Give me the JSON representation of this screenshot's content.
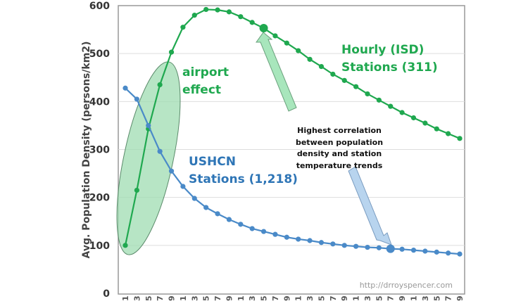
{
  "chart_data": {
    "type": "line",
    "title": "",
    "xlabel": "",
    "ylabel": "Avg. Population Density (persons/km2)",
    "ylim": [
      0,
      600
    ],
    "yticks": [
      0,
      100,
      200,
      300,
      400,
      500,
      600
    ],
    "grid": true,
    "x_tick_labels": [
      "1",
      "3",
      "5",
      "7",
      "9",
      "1",
      "3",
      "5",
      "7",
      "9",
      "1",
      "3",
      "5",
      "7",
      "9",
      "1",
      "3",
      "5",
      "7",
      "9",
      "1",
      "3",
      "5",
      "7",
      "9",
      "1",
      "3",
      "5",
      "7",
      "9"
    ],
    "series": [
      {
        "name": "Hourly (ISD) Stations (311)",
        "color": "#1fa84f",
        "highlight_index": 12,
        "values": [
          100,
          215,
          343,
          435,
          503,
          555,
          580,
          592,
          591,
          587,
          577,
          565,
          553,
          537,
          522,
          506,
          488,
          473,
          457,
          444,
          431,
          416,
          403,
          390,
          377,
          366,
          355,
          343,
          333,
          323
        ]
      },
      {
        "name": "USHCN Stations (1,218)",
        "color": "#4a8ac8",
        "highlight_index": 23,
        "values": [
          428,
          405,
          350,
          296,
          255,
          223,
          198,
          179,
          166,
          154,
          144,
          135,
          129,
          123,
          117,
          113,
          110,
          106,
          103,
          100,
          98,
          96,
          95,
          93,
          92,
          90,
          88,
          86,
          84,
          82
        ]
      }
    ],
    "annotations": {
      "airport": [
        "airport",
        "effect"
      ],
      "isd_label": [
        "Hourly (ISD)",
        "Stations (311)"
      ],
      "ushcn_label": [
        "USHCN",
        "Stations (1,218)"
      ],
      "correlation": [
        "Highest correlation",
        "between population",
        "density and station",
        "temperature trends"
      ],
      "watermark": "http://drroyspencer.com"
    }
  }
}
